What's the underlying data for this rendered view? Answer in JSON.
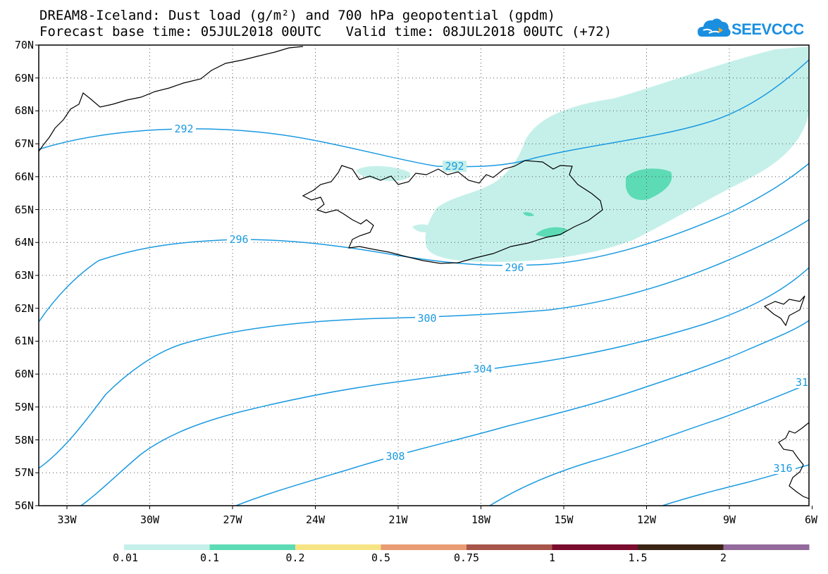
{
  "title": {
    "line1": "DREAM8-Iceland: Dust load (g/m²) and 700 hPa geopotential (gpdm)",
    "line2": "Forecast base time: 05JUL2018 00UTC   Valid time: 08JUL2018 00UTC (+72)"
  },
  "logo": {
    "text": "SEEVCCC",
    "icon": "cloud-logo-icon",
    "color": "#1a8fe0"
  },
  "axes": {
    "lat_labels": [
      "70N",
      "69N",
      "68N",
      "67N",
      "66N",
      "65N",
      "64N",
      "63N",
      "62N",
      "61N",
      "60N",
      "59N",
      "58N",
      "57N",
      "56N"
    ],
    "lon_labels": [
      "33W",
      "30W",
      "27W",
      "24W",
      "21W",
      "18W",
      "15W",
      "12W",
      "9W",
      "6W"
    ]
  },
  "contours": {
    "color": "#1a9ae0",
    "labels": [
      "292",
      "292",
      "296",
      "296",
      "300",
      "304",
      "308",
      "31",
      "316"
    ]
  },
  "colorbar": {
    "labels": [
      "0.01",
      "0.1",
      "0.2",
      "0.5",
      "0.75",
      "1",
      "1.5",
      "2"
    ],
    "colors": [
      "#c5f0ea",
      "#5ddbb5",
      "#f7e585",
      "#e99c74",
      "#a7554a",
      "#7a0c2e",
      "#3b2415",
      "#946a9c"
    ]
  },
  "dust_colors": {
    "low": "#c5f0ea",
    "mid": "#5ddbb5"
  }
}
